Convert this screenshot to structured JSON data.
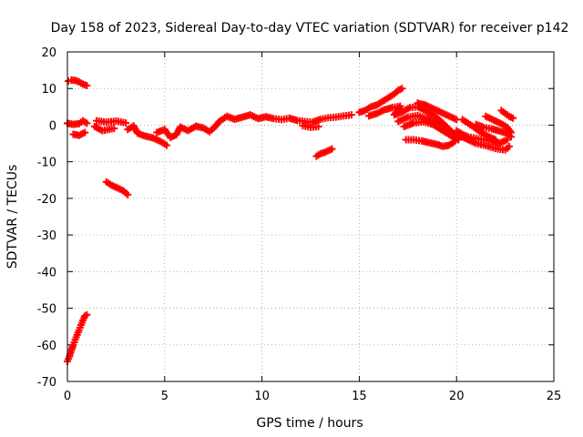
{
  "chart_data": {
    "type": "scatter",
    "title": "Day 158 of 2023, Sidereal Day-to-day VTEC variation (SDTVAR) for receiver p142",
    "xlabel": "GPS time / hours",
    "ylabel": "SDTVAR / TECUs",
    "xlim": [
      0,
      25
    ],
    "ylim": [
      -70,
      20
    ],
    "xticks": [
      0,
      5,
      10,
      15,
      20,
      25
    ],
    "yticks": [
      -70,
      -60,
      -50,
      -40,
      -30,
      -20,
      -10,
      0,
      10,
      20
    ],
    "grid": true,
    "marker": "+",
    "color": "#ff0000",
    "series": [
      {
        "name": "p142",
        "points": [
          [
            0.0,
            -64.5
          ],
          [
            0.1,
            -63.2
          ],
          [
            0.2,
            -61.5
          ],
          [
            0.3,
            -60.0
          ],
          [
            0.4,
            -58.6
          ],
          [
            0.5,
            -57.3
          ],
          [
            0.6,
            -56.0
          ],
          [
            0.7,
            -54.6
          ],
          [
            0.8,
            -53.3
          ],
          [
            0.9,
            -52.1
          ],
          [
            1.0,
            -51.8
          ],
          [
            0.05,
            12.0
          ],
          [
            0.2,
            12.3
          ],
          [
            0.4,
            12.2
          ],
          [
            0.6,
            11.8
          ],
          [
            0.8,
            11.2
          ],
          [
            1.0,
            10.8
          ],
          [
            0.0,
            0.5
          ],
          [
            0.3,
            0.2
          ],
          [
            0.6,
            0.4
          ],
          [
            0.8,
            1.2
          ],
          [
            1.0,
            0.5
          ],
          [
            0.3,
            -2.5
          ],
          [
            0.6,
            -2.8
          ],
          [
            0.9,
            -2.0
          ],
          [
            1.5,
            1.2
          ],
          [
            2.0,
            0.8
          ],
          [
            2.5,
            1.1
          ],
          [
            3.0,
            0.6
          ],
          [
            1.4,
            -0.4
          ],
          [
            1.8,
            -1.5
          ],
          [
            2.4,
            -0.9
          ],
          [
            3.1,
            -1.2
          ],
          [
            3.4,
            -0.2
          ],
          [
            3.6,
            -2.2
          ],
          [
            4.0,
            -3.0
          ],
          [
            4.4,
            -3.5
          ],
          [
            4.8,
            -4.5
          ],
          [
            5.1,
            -5.5
          ],
          [
            4.6,
            -2.0
          ],
          [
            5.0,
            -1.2
          ],
          [
            5.3,
            -3.4
          ],
          [
            5.6,
            -2.6
          ],
          [
            5.8,
            -0.5
          ],
          [
            6.2,
            -1.5
          ],
          [
            6.6,
            -0.3
          ],
          [
            7.0,
            -0.8
          ],
          [
            7.3,
            -1.8
          ],
          [
            7.6,
            -0.4
          ],
          [
            7.8,
            1.0
          ],
          [
            8.2,
            2.4
          ],
          [
            8.6,
            1.6
          ],
          [
            9.0,
            2.2
          ],
          [
            9.4,
            2.8
          ],
          [
            9.8,
            1.8
          ],
          [
            10.2,
            2.3
          ],
          [
            10.6,
            1.8
          ],
          [
            11.0,
            1.5
          ],
          [
            11.4,
            1.9
          ],
          [
            11.8,
            1.3
          ],
          [
            12.2,
            1.0
          ],
          [
            12.6,
            0.8
          ],
          [
            13.0,
            1.6
          ],
          [
            13.4,
            2.0
          ],
          [
            13.8,
            2.2
          ],
          [
            14.2,
            2.5
          ],
          [
            14.6,
            2.8
          ],
          [
            12.1,
            -0.2
          ],
          [
            12.5,
            -0.6
          ],
          [
            12.9,
            -0.4
          ],
          [
            2.0,
            -15.5
          ],
          [
            2.3,
            -16.5
          ],
          [
            2.6,
            -17.2
          ],
          [
            2.9,
            -18.0
          ],
          [
            3.1,
            -19.0
          ],
          [
            12.8,
            -8.5
          ],
          [
            13.0,
            -7.8
          ],
          [
            13.2,
            -7.5
          ],
          [
            13.4,
            -7.0
          ],
          [
            13.6,
            -6.5
          ],
          [
            15.0,
            3.5
          ],
          [
            15.3,
            4.0
          ],
          [
            15.6,
            5.0
          ],
          [
            15.9,
            5.5
          ],
          [
            16.2,
            6.5
          ],
          [
            16.5,
            7.5
          ],
          [
            16.8,
            8.5
          ],
          [
            17.0,
            9.5
          ],
          [
            17.2,
            10.0
          ],
          [
            15.5,
            2.5
          ],
          [
            15.9,
            3.2
          ],
          [
            16.3,
            4.2
          ],
          [
            16.7,
            4.8
          ],
          [
            17.1,
            5.2
          ],
          [
            16.8,
            2.8
          ],
          [
            17.2,
            3.6
          ],
          [
            17.6,
            4.8
          ],
          [
            18.0,
            5.0
          ],
          [
            18.4,
            4.0
          ],
          [
            18.8,
            2.8
          ],
          [
            19.2,
            1.0
          ],
          [
            19.6,
            -1.0
          ],
          [
            19.9,
            -2.8
          ],
          [
            17.0,
            1.0
          ],
          [
            17.5,
            2.2
          ],
          [
            18.0,
            2.6
          ],
          [
            18.5,
            1.8
          ],
          [
            19.0,
            0.4
          ],
          [
            19.5,
            -1.2
          ],
          [
            20.0,
            -3.5
          ],
          [
            17.3,
            -0.4
          ],
          [
            17.8,
            0.6
          ],
          [
            18.3,
            0.9
          ],
          [
            18.8,
            0.1
          ],
          [
            19.3,
            -1.5
          ],
          [
            19.8,
            -3.2
          ],
          [
            20.1,
            -4.0
          ],
          [
            18.0,
            6.0
          ],
          [
            18.4,
            5.5
          ],
          [
            18.8,
            4.5
          ],
          [
            19.2,
            3.5
          ],
          [
            19.6,
            2.5
          ],
          [
            20.0,
            1.5
          ],
          [
            17.4,
            -4.0
          ],
          [
            17.8,
            -4.0
          ],
          [
            18.2,
            -4.3
          ],
          [
            18.6,
            -4.8
          ],
          [
            19.0,
            -5.3
          ],
          [
            19.3,
            -5.8
          ],
          [
            19.6,
            -5.5
          ],
          [
            19.9,
            -4.5
          ],
          [
            20.0,
            -1.5
          ],
          [
            20.3,
            -2.5
          ],
          [
            20.6,
            -3.2
          ],
          [
            21.0,
            -3.6
          ],
          [
            21.4,
            -4.0
          ],
          [
            21.8,
            -4.4
          ],
          [
            22.2,
            -5.0
          ],
          [
            22.6,
            -4.0
          ],
          [
            20.2,
            -3.0
          ],
          [
            20.6,
            -4.0
          ],
          [
            21.0,
            -5.0
          ],
          [
            21.5,
            -5.6
          ],
          [
            22.0,
            -6.4
          ],
          [
            22.5,
            -6.8
          ],
          [
            22.7,
            -5.8
          ],
          [
            21.0,
            0.2
          ],
          [
            21.4,
            -0.6
          ],
          [
            21.8,
            -1.0
          ],
          [
            22.2,
            -1.6
          ],
          [
            22.6,
            -2.2
          ],
          [
            22.8,
            -3.2
          ],
          [
            21.5,
            2.4
          ],
          [
            21.9,
            1.4
          ],
          [
            22.3,
            0.4
          ],
          [
            22.6,
            -0.6
          ],
          [
            22.8,
            -2.0
          ],
          [
            20.3,
            1.5
          ],
          [
            20.8,
            -0.2
          ],
          [
            21.2,
            -1.8
          ],
          [
            21.6,
            -3.0
          ],
          [
            22.0,
            -4.0
          ],
          [
            22.3,
            4.0
          ],
          [
            22.5,
            3.2
          ],
          [
            22.7,
            2.4
          ],
          [
            22.9,
            1.9
          ]
        ]
      }
    ]
  }
}
